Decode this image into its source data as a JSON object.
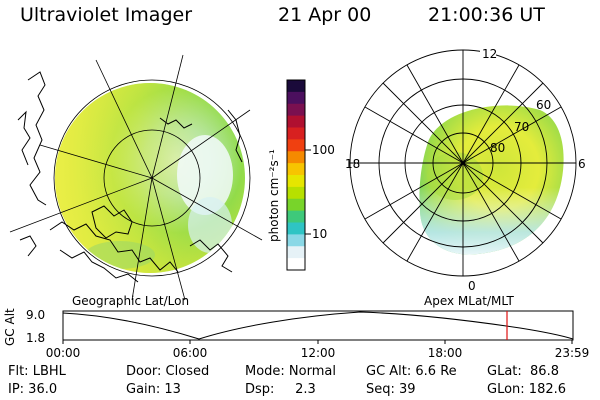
{
  "header": {
    "title": "Ultraviolet Imager",
    "date": "21 Apr 00",
    "time": "21:00:36 UT"
  },
  "colorbar": {
    "unit_label": "photon cm⁻²s⁻¹",
    "tick_100": "100",
    "tick_10": "10",
    "colors": [
      "#1a0a3a",
      "#4b0f5e",
      "#7a1050",
      "#b01030",
      "#d82020",
      "#f04010",
      "#f58a00",
      "#f7c400",
      "#e6e600",
      "#b7e000",
      "#78d42a",
      "#3ec97a",
      "#2fc4c4",
      "#8ad8e6",
      "#e6f2f7",
      "#ffffff"
    ]
  },
  "geo_panel": {
    "label": "Geographic Lat/Lon"
  },
  "polar_panel": {
    "label": "Apex MLat/MLT",
    "mlt_top": "12",
    "mlt_left": "18",
    "mlt_right": "6",
    "mlt_bottom": "0",
    "lat_60": "60",
    "lat_70": "70",
    "lat_80": "80"
  },
  "timeline": {
    "ylabel": "GC Alt",
    "y_top": "9.0",
    "y_bottom": "1.8",
    "ticks": [
      "00:00",
      "06:00",
      "12:00",
      "18:00",
      "23:59"
    ],
    "marker_color": "#e01010"
  },
  "info": {
    "flt": "Flt: LBHL",
    "ip": "IP: 36.0",
    "door": "Door: Closed",
    "gain": "Gain: 13",
    "mode": "Mode: Normal",
    "dsp": "Dsp:     2.3",
    "gcalt": "GC Alt: 6.6 Re",
    "seq": "Seq: 39",
    "glat": "GLat:  86.8",
    "glon": "GLon: 182.6"
  }
}
